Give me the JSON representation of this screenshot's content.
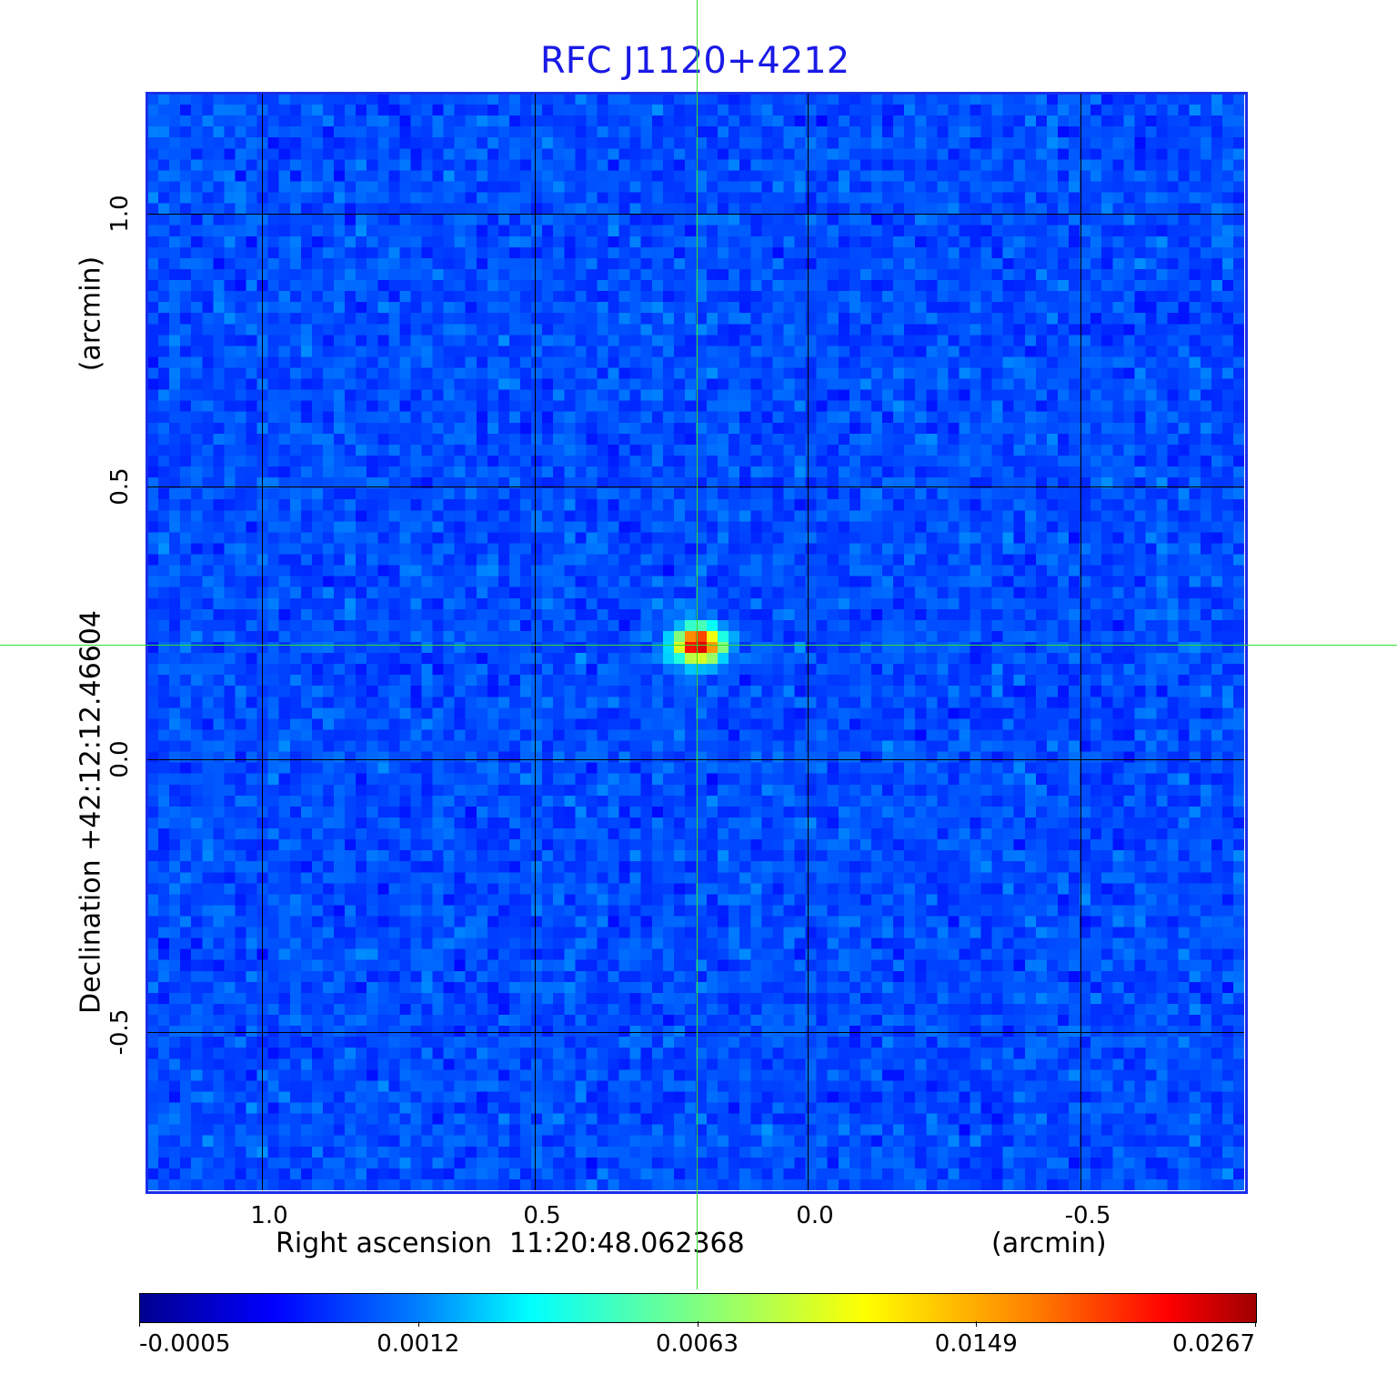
{
  "chart_data": {
    "type": "heatmap",
    "title": "RFC J1120+4212",
    "xlabel": "Right ascension  11:20:48.062368",
    "xlabel_unit": "(arcmin)",
    "ylabel": "Declination  +42:12:12.46604",
    "ylabel_unit": "(arcmin)",
    "xlim": [
      1.21,
      -0.8
    ],
    "ylim": [
      -0.79,
      1.22
    ],
    "x_ticks": [
      "1.0",
      "0.5",
      "0.0",
      "-0.5"
    ],
    "x_tick_values": [
      1.0,
      0.5,
      0.0,
      -0.5
    ],
    "y_ticks": [
      "1.0",
      "0.5",
      "0.0",
      "-0.5"
    ],
    "y_tick_values": [
      1.0,
      0.5,
      0.0,
      -0.5
    ],
    "grid": true,
    "colormap": "jet",
    "colorbar": {
      "ticks": [
        "-0.0005",
        "0.0012",
        "0.0063",
        "0.0149",
        "0.0267"
      ],
      "min": -0.0005,
      "max": 0.0267,
      "placement": "bottom"
    },
    "source": {
      "x": 0.2,
      "y": 0.21,
      "peak": 0.0267
    },
    "background_level": 0.0005,
    "crosshair": {
      "x": 0.2,
      "y": 0.21,
      "color": "#33dd33"
    },
    "frame_color": "#1a2ee8",
    "title_color": "#1a1ae6"
  }
}
